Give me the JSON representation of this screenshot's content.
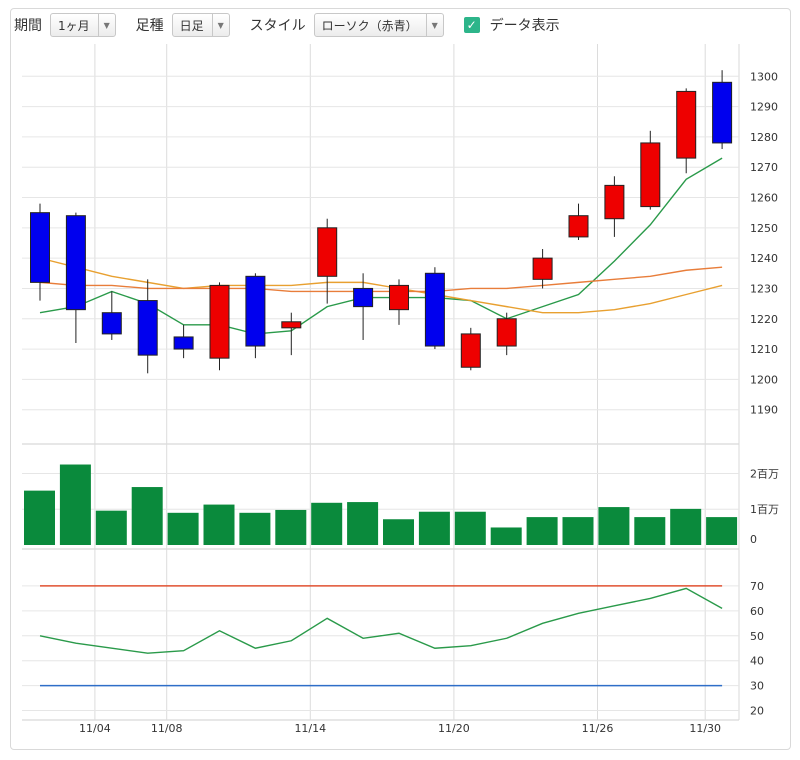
{
  "toolbar": {
    "period_label": "期間",
    "period_value": "1ヶ月",
    "footstep_label": "足種",
    "footstep_value": "日足",
    "style_label": "スタイル",
    "style_value": "ローソク（赤青）",
    "data_display_label": "データ表示",
    "data_display_checked": true
  },
  "colors": {
    "up": "#ee0000",
    "down": "#0000ee",
    "ma_short": "#2a9a4a",
    "ma_mid": "#e8a030",
    "ma_long": "#e87d3a",
    "volume": "#0a8a3c",
    "rsi": "#2a9a4a",
    "rsi_upper": "#e05030",
    "rsi_lower": "#2e6ec8"
  },
  "chart_data": [
    {
      "type": "candlestick",
      "x_tick_labels": [
        "11/04",
        "11/08",
        "11/14",
        "11/20",
        "11/26",
        "11/30"
      ],
      "x_tick_index": [
        1,
        3,
        7,
        11,
        15,
        18
      ],
      "y_ticks": [
        1190,
        1200,
        1210,
        1220,
        1230,
        1240,
        1250,
        1260,
        1270,
        1280,
        1290,
        1300
      ],
      "ylim": [
        1180,
        1308
      ],
      "candles": [
        {
          "open": 1255,
          "close": 1232,
          "high": 1258,
          "low": 1226
        },
        {
          "open": 1254,
          "close": 1223,
          "high": 1255,
          "low": 1212
        },
        {
          "open": 1222,
          "close": 1215,
          "high": 1229,
          "low": 1213
        },
        {
          "open": 1226,
          "close": 1208,
          "high": 1233,
          "low": 1202
        },
        {
          "open": 1214,
          "close": 1210,
          "high": 1218,
          "low": 1207
        },
        {
          "open": 1207,
          "close": 1231,
          "high": 1232,
          "low": 1203
        },
        {
          "open": 1234,
          "close": 1211,
          "high": 1235,
          "low": 1207
        },
        {
          "open": 1217,
          "close": 1219,
          "high": 1222,
          "low": 1208
        },
        {
          "open": 1234,
          "close": 1250,
          "high": 1253,
          "low": 1225
        },
        {
          "open": 1230,
          "close": 1224,
          "high": 1235,
          "low": 1213
        },
        {
          "open": 1223,
          "close": 1231,
          "high": 1233,
          "low": 1218
        },
        {
          "open": 1235,
          "close": 1211,
          "high": 1237,
          "low": 1210
        },
        {
          "open": 1204,
          "close": 1215,
          "high": 1217,
          "low": 1203
        },
        {
          "open": 1211,
          "close": 1220,
          "high": 1222,
          "low": 1208
        },
        {
          "open": 1233,
          "close": 1240,
          "high": 1243,
          "low": 1230
        },
        {
          "open": 1247,
          "close": 1254,
          "high": 1258,
          "low": 1246
        },
        {
          "open": 1253,
          "close": 1264,
          "high": 1267,
          "low": 1247
        },
        {
          "open": 1257,
          "close": 1278,
          "high": 1282,
          "low": 1256
        },
        {
          "open": 1273,
          "close": 1295,
          "high": 1296,
          "low": 1268
        },
        {
          "open": 1298,
          "close": 1278,
          "high": 1302,
          "low": 1276
        }
      ],
      "moving_averages": [
        {
          "key": "ma_short",
          "values": [
            1222,
            1224,
            1229,
            1225,
            1218,
            1218,
            1215,
            1216,
            1224,
            1227,
            1227,
            1227,
            1226,
            1220,
            1224,
            1228,
            1239,
            1251,
            1266,
            1273
          ]
        },
        {
          "key": "ma_mid",
          "values": [
            1240,
            1237,
            1234,
            1232,
            1230,
            1231,
            1231,
            1231,
            1232,
            1232,
            1230,
            1228,
            1226,
            1224,
            1222,
            1222,
            1223,
            1225,
            1228,
            1231
          ]
        },
        {
          "key": "ma_long",
          "values": [
            1232,
            1231,
            1231,
            1230,
            1230,
            1230,
            1230,
            1229,
            1229,
            1229,
            1229,
            1229,
            1230,
            1230,
            1231,
            1232,
            1233,
            1234,
            1236,
            1237
          ]
        }
      ]
    },
    {
      "type": "bar",
      "y_tick_labels": [
        "0",
        "1百万",
        "2百万"
      ],
      "y_tick_values": [
        0,
        1000000,
        2000000
      ],
      "ylim": [
        0,
        2600000
      ],
      "values": [
        1520000,
        2250000,
        960000,
        1620000,
        900000,
        1130000,
        900000,
        980000,
        1180000,
        1200000,
        720000,
        930000,
        930000,
        490000,
        780000,
        780000,
        1060000,
        780000,
        1010000,
        780000
      ]
    },
    {
      "type": "line",
      "y_ticks": [
        20,
        30,
        40,
        50,
        60,
        70
      ],
      "ylim": [
        17,
        78
      ],
      "upper_level": 70,
      "lower_level": 30,
      "values": [
        50,
        47,
        45,
        43,
        44,
        52,
        45,
        48,
        57,
        49,
        51,
        45,
        46,
        49,
        55,
        59,
        62,
        65,
        69,
        61
      ]
    }
  ]
}
